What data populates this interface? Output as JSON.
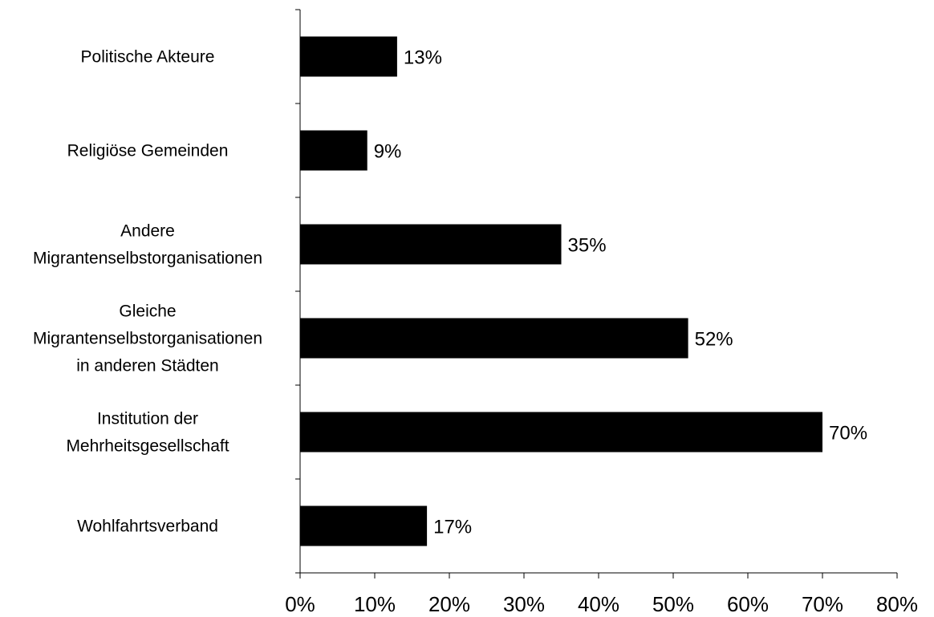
{
  "chart_data": {
    "type": "bar",
    "orientation": "horizontal",
    "categories": [
      [
        "Politische Akteure"
      ],
      [
        "Religiöse Gemeinden"
      ],
      [
        "Andere",
        "Migrantenselbstorganisationen"
      ],
      [
        "Gleiche",
        "Migrantenselbstorganisationen",
        "in anderen Städten"
      ],
      [
        "Institution der",
        "Mehrheitsgesellschaft"
      ],
      [
        "Wohlfahrtsverband"
      ]
    ],
    "values": [
      13,
      9,
      35,
      52,
      70,
      17
    ],
    "value_labels": [
      "13%",
      "9%",
      "35%",
      "52%",
      "70%",
      "17%"
    ],
    "xlim": [
      0,
      80
    ],
    "xticks": [
      0,
      10,
      20,
      30,
      40,
      50,
      60,
      70,
      80
    ],
    "xtick_labels": [
      "0%",
      "10%",
      "20%",
      "30%",
      "40%",
      "50%",
      "60%",
      "70%",
      "80%"
    ],
    "title": "",
    "xlabel": "",
    "ylabel": "",
    "grid": false,
    "legend": "none",
    "bar_color": "#000000"
  }
}
